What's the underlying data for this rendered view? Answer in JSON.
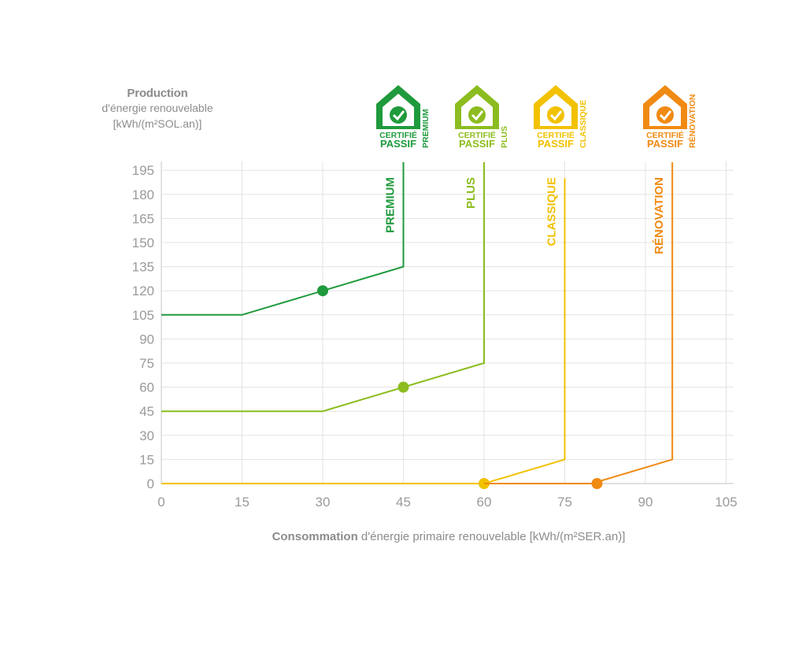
{
  "chart_data": {
    "type": "line",
    "title": "",
    "ylabel": {
      "title": "Production",
      "line1": "d'énergie renouvelable",
      "line2": "[kWh/(m²SOL.an)]"
    },
    "xlabel": {
      "strong": "Consommation",
      "rest": "d'énergie primaire renouvelable [kWh/(m²SER.an)]"
    },
    "xlim": [
      0,
      105
    ],
    "ylim": [
      0,
      195
    ],
    "x_ticks": [
      0,
      15,
      30,
      45,
      60,
      75,
      90,
      105
    ],
    "y_ticks": [
      0,
      15,
      30,
      45,
      60,
      75,
      90,
      105,
      120,
      135,
      150,
      165,
      180,
      195
    ],
    "grid": true,
    "series": [
      {
        "name": "PREMIUM",
        "color": "#1f9a3c",
        "points": [
          [
            0,
            105
          ],
          [
            15,
            105
          ],
          [
            45,
            135
          ],
          [
            45,
            200
          ]
        ],
        "marker": [
          30,
          120
        ],
        "logo": {
          "line1": "CERTIFIÉ",
          "line2": "PASSIF",
          "side": "PREMIUM"
        }
      },
      {
        "name": "PLUS",
        "color": "#8cbc1f",
        "points": [
          [
            0,
            45
          ],
          [
            30,
            45
          ],
          [
            60,
            75
          ],
          [
            60,
            200
          ]
        ],
        "marker": [
          45,
          60
        ],
        "logo": {
          "line1": "CERTIFIÉ",
          "line2": "PASSIF",
          "side": "PLUS"
        }
      },
      {
        "name": "CLASSIQUE",
        "color": "#f2c100",
        "points": [
          [
            0,
            0
          ],
          [
            60,
            0
          ],
          [
            75,
            15
          ],
          [
            75,
            190
          ]
        ],
        "marker": [
          60,
          0
        ],
        "logo": {
          "line1": "CERTIFIÉ",
          "line2": "PASSIF",
          "side": "CLASSIQUE"
        }
      },
      {
        "name": "RÉNOVATION",
        "color": "#f08a12",
        "points": [
          [
            60,
            0
          ],
          [
            80,
            0
          ],
          [
            95,
            15
          ],
          [
            95,
            200
          ]
        ],
        "marker": [
          81,
          0
        ],
        "logo": {
          "line1": "CERTIFIÉ",
          "line2": "PASSIF",
          "side": "RÉNOVATION"
        }
      }
    ]
  }
}
